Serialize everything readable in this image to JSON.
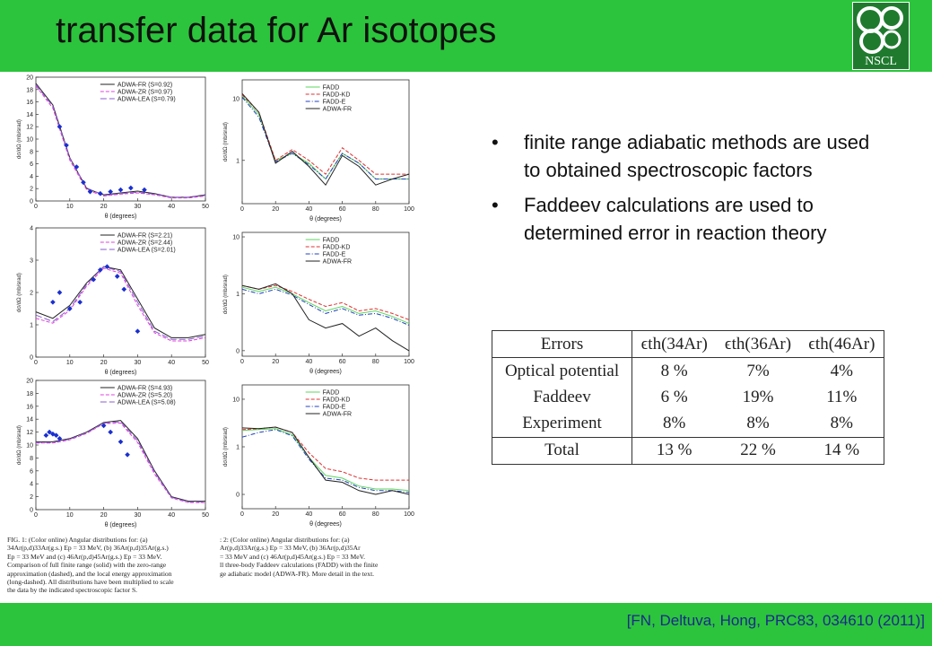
{
  "header": {
    "title": "transfer data for Ar isotopes"
  },
  "logo": {
    "text": "NSCL"
  },
  "chart_data": [
    {
      "type": "line",
      "xlabel": "θ (degrees)",
      "ylabel": "dσ/dΩ (mb/srad)",
      "xlim": [
        0,
        50
      ],
      "ylim": [
        0,
        20
      ],
      "xticks": [
        0,
        10,
        20,
        30,
        40,
        50
      ],
      "yticks": [
        0,
        2,
        4,
        6,
        8,
        10,
        12,
        14,
        16,
        18,
        20
      ],
      "ylog": false,
      "x": [
        0,
        5,
        10,
        15,
        20,
        25,
        30,
        35,
        40,
        45,
        50
      ],
      "series": [
        {
          "name": "ADWA-FR (S=0.92)",
          "color": "#222222",
          "dash": "solid",
          "values": [
            19,
            15.5,
            7,
            2,
            1,
            1.3,
            1.6,
            1.2,
            0.6,
            0.6,
            1
          ]
        },
        {
          "name": "ADWA-ZR (S=0.97)",
          "color": "#e040e0",
          "dash": "dashed",
          "values": [
            18.6,
            15,
            6.6,
            1.8,
            0.8,
            1.1,
            1.3,
            1,
            0.5,
            0.5,
            0.8
          ]
        },
        {
          "name": "ADWA-LEA (S=0.79)",
          "color": "#8a5ccf",
          "dash": "long-dashed",
          "values": [
            18.8,
            15.3,
            6.9,
            2.1,
            0.9,
            1.2,
            1.4,
            1.1,
            0.6,
            0.6,
            0.9
          ]
        }
      ],
      "points": {
        "color": "#1a2fd0",
        "x": [
          7,
          9,
          12,
          14,
          16,
          19,
          22,
          25,
          28,
          32
        ],
        "y": [
          12,
          9,
          5.5,
          3,
          1.5,
          1.2,
          1.5,
          1.8,
          2.1,
          1.8
        ]
      }
    },
    {
      "type": "line",
      "xlabel": "θ (degrees)",
      "ylabel": "dσ/dΩ (mb/srad)",
      "xlim": [
        0,
        50
      ],
      "ylim": [
        0,
        4
      ],
      "xticks": [
        0,
        10,
        20,
        30,
        40,
        50
      ],
      "yticks": [
        0,
        1,
        2,
        3,
        4
      ],
      "ylog": false,
      "x": [
        0,
        5,
        10,
        15,
        20,
        25,
        30,
        35,
        40,
        45,
        50
      ],
      "series": [
        {
          "name": "ADWA-FR (S=2.21)",
          "color": "#222222",
          "dash": "solid",
          "values": [
            1.4,
            1.2,
            1.6,
            2.3,
            2.8,
            2.7,
            1.8,
            0.9,
            0.6,
            0.6,
            0.7
          ]
        },
        {
          "name": "ADWA-ZR (S=2.44)",
          "color": "#e040e0",
          "dash": "dashed",
          "values": [
            1.2,
            1.05,
            1.45,
            2.2,
            2.75,
            2.6,
            1.6,
            0.75,
            0.5,
            0.5,
            0.6
          ]
        },
        {
          "name": "ADWA-LEA (S=2.01)",
          "color": "#8a5ccf",
          "dash": "long-dashed",
          "values": [
            1.3,
            1.1,
            1.5,
            2.25,
            2.8,
            2.65,
            1.7,
            0.8,
            0.55,
            0.55,
            0.65
          ]
        }
      ],
      "points": {
        "color": "#1a2fd0",
        "x": [
          5,
          7,
          10,
          13,
          17,
          19,
          21,
          24,
          26,
          30
        ],
        "y": [
          1.7,
          2,
          1.5,
          1.7,
          2.4,
          2.7,
          2.8,
          2.5,
          2.1,
          0.8
        ]
      }
    },
    {
      "type": "line",
      "xlabel": "θ (degrees)",
      "ylabel": "dσ/dΩ (mb/srad)",
      "xlim": [
        0,
        50
      ],
      "ylim": [
        0,
        20
      ],
      "xticks": [
        0,
        10,
        20,
        30,
        40,
        50
      ],
      "yticks": [
        0,
        2,
        4,
        6,
        8,
        10,
        12,
        14,
        16,
        18,
        20
      ],
      "ylog": false,
      "x": [
        0,
        5,
        10,
        15,
        20,
        25,
        30,
        35,
        40,
        45,
        50
      ],
      "series": [
        {
          "name": "ADWA-FR (S=4.93)",
          "color": "#222222",
          "dash": "solid",
          "values": [
            10.5,
            10.5,
            11,
            12,
            13.5,
            13.8,
            11,
            6,
            2,
            1.3,
            1.3
          ]
        },
        {
          "name": "ADWA-ZR (S=5.20)",
          "color": "#e040e0",
          "dash": "dashed",
          "values": [
            10.3,
            10.3,
            10.8,
            11.8,
            13.3,
            13.4,
            10.4,
            5.5,
            1.8,
            1.1,
            1.1
          ]
        },
        {
          "name": "ADWA-LEA (S=5.08)",
          "color": "#8a5ccf",
          "dash": "long-dashed",
          "values": [
            10.4,
            10.4,
            10.9,
            11.9,
            13.4,
            13.6,
            10.7,
            5.8,
            1.9,
            1.2,
            1.2
          ]
        }
      ],
      "points": {
        "color": "#1a2fd0",
        "x": [
          3,
          4,
          5,
          6,
          7,
          20,
          22,
          25,
          27
        ],
        "y": [
          11.5,
          12,
          11.7,
          11.5,
          11,
          13,
          12,
          10.5,
          8.5
        ]
      }
    },
    {
      "type": "line",
      "xlabel": "θ (degrees)",
      "ylabel": "dσ/dΩ (mb/srad)",
      "xlim": [
        0,
        100
      ],
      "ylim": [
        0.2,
        20
      ],
      "xticks": [
        0,
        20,
        40,
        60,
        80,
        100
      ],
      "yticks": [
        10,
        1
      ],
      "ylog": true,
      "x": [
        0,
        10,
        20,
        30,
        40,
        50,
        60,
        70,
        80,
        90,
        100
      ],
      "series": [
        {
          "name": "FADD",
          "color": "#5ed65e",
          "dash": "solid",
          "values": [
            11,
            5.5,
            1,
            1.3,
            0.9,
            0.5,
            1.3,
            0.9,
            0.5,
            0.5,
            0.5
          ]
        },
        {
          "name": "FADD-KD",
          "color": "#e03030",
          "dash": "dashed",
          "values": [
            11.5,
            6,
            1,
            1.5,
            1,
            0.6,
            1.6,
            1,
            0.6,
            0.6,
            0.6
          ]
        },
        {
          "name": "FADD-E",
          "color": "#2040c0",
          "dash": "dash-dot",
          "values": [
            10.5,
            5,
            0.95,
            1.3,
            0.85,
            0.5,
            1.3,
            0.9,
            0.5,
            0.5,
            0.5
          ]
        },
        {
          "name": "ADWA-FR",
          "color": "#222222",
          "dash": "solid",
          "values": [
            12,
            6,
            0.9,
            1.4,
            0.8,
            0.4,
            1.2,
            0.8,
            0.4,
            0.5,
            0.6
          ]
        }
      ]
    },
    {
      "type": "line",
      "xlabel": "θ (degrees)",
      "ylabel": "dσ/dΩ (mb/srad)",
      "xlim": [
        0,
        100
      ],
      "ylim": [
        0.08,
        12
      ],
      "xticks": [
        0,
        20,
        40,
        60,
        80,
        100
      ],
      "yticks": [
        10,
        1,
        {
          "value": 0.1,
          "label": "0"
        }
      ],
      "ylog": true,
      "x": [
        0,
        10,
        20,
        30,
        40,
        50,
        60,
        70,
        80,
        90,
        100
      ],
      "series": [
        {
          "name": "FADD",
          "color": "#5ed65e",
          "dash": "solid",
          "values": [
            1.3,
            1.1,
            1.3,
            1,
            0.7,
            0.5,
            0.6,
            0.45,
            0.5,
            0.4,
            0.3
          ]
        },
        {
          "name": "FADD-KD",
          "color": "#e03030",
          "dash": "dashed",
          "values": [
            1.4,
            1.2,
            1.4,
            1.1,
            0.8,
            0.6,
            0.7,
            0.5,
            0.55,
            0.45,
            0.35
          ]
        },
        {
          "name": "FADD-E",
          "color": "#2040c0",
          "dash": "dash-dot",
          "values": [
            1.2,
            1,
            1.2,
            0.95,
            0.65,
            0.45,
            0.55,
            0.42,
            0.45,
            0.37,
            0.28
          ]
        },
        {
          "name": "ADWA-FR",
          "color": "#222222",
          "dash": "solid",
          "values": [
            1.4,
            1.2,
            1.5,
            1,
            0.35,
            0.25,
            0.3,
            0.18,
            0.25,
            0.15,
            0.1
          ]
        }
      ]
    },
    {
      "type": "line",
      "xlabel": "θ (degrees)",
      "ylabel": "dσ/dΩ (mb/srad)",
      "xlim": [
        0,
        100
      ],
      "ylim": [
        0.05,
        20
      ],
      "xticks": [
        0,
        20,
        40,
        60,
        80,
        100
      ],
      "yticks": [
        10,
        1,
        {
          "value": 0.1,
          "label": "0"
        }
      ],
      "ylog": true,
      "x": [
        0,
        10,
        20,
        30,
        40,
        50,
        60,
        70,
        80,
        90,
        100
      ],
      "series": [
        {
          "name": "FADD",
          "color": "#5ed65e",
          "dash": "solid",
          "values": [
            2.2,
            2.3,
            2.4,
            1.8,
            0.6,
            0.25,
            0.22,
            0.15,
            0.13,
            0.13,
            0.12
          ]
        },
        {
          "name": "FADD-KD",
          "color": "#e03030",
          "dash": "dashed",
          "values": [
            2.3,
            2.4,
            2.6,
            2,
            0.75,
            0.35,
            0.3,
            0.22,
            0.2,
            0.2,
            0.2
          ]
        },
        {
          "name": "FADD-E",
          "color": "#2040c0",
          "dash": "dash-dot",
          "values": [
            1.6,
            2,
            2.3,
            1.7,
            0.55,
            0.22,
            0.2,
            0.14,
            0.12,
            0.12,
            0.11
          ]
        },
        {
          "name": "ADWA-FR",
          "color": "#222222",
          "dash": "solid",
          "values": [
            2.5,
            2.4,
            2.6,
            2,
            0.6,
            0.2,
            0.18,
            0.12,
            0.1,
            0.12,
            0.1
          ]
        }
      ]
    }
  ],
  "captions": {
    "left": [
      "FIG. 1: (Color online) Angular distributions for: (a)",
      "34Ar(p,d)33Ar(g.s.)  Ep = 33 MeV, (b) 36Ar(p,d)35Ar(g.s.)",
      "Ep = 33 MeV and (c) 46Ar(p,d)45Ar(g.s.)  Ep = 33 MeV.",
      "Comparison of full finite range (solid) with the zero-range",
      "approximation (dashed), and the local energy approximation",
      "(long-dashed). All distributions have been multiplied to scale",
      "the data by the indicated spectroscopic factor S."
    ],
    "right": [
      ": 2: (Color online) Angular distributions for: (a)",
      "Ar(p,d)33Ar(g.s.)  Ep = 33 MeV, (b) 36Ar(p,d)35Ar",
      "= 33 MeV and (c) 46Ar(p,d)45Ar(g.s.)  Ep = 33 MeV.",
      "ll three-body Faddeev calculations (FADD) with the finite",
      "ge adiabatic model (ADWA-FR). More detail in the text."
    ]
  },
  "bullets": [
    "finite range adiabatic methods are used to obtained spectroscopic factors",
    "Faddeev calculations are used to determined error in reaction theory"
  ],
  "table": {
    "header": [
      "Errors",
      "ϵth(34Ar)",
      "ϵth(36Ar)",
      "ϵth(46Ar)"
    ],
    "rows": [
      [
        "Optical potential",
        "8 %",
        "7%",
        "4%"
      ],
      [
        "Faddeev",
        "6 %",
        "19%",
        "11%"
      ],
      [
        "Experiment",
        "8%",
        "8%",
        "8%"
      ]
    ],
    "total": [
      "Total",
      "13 %",
      "22 %",
      "14 %"
    ]
  },
  "citation": "[FN, Deltuva, Hong, PRC83, 034610 (2011)]"
}
